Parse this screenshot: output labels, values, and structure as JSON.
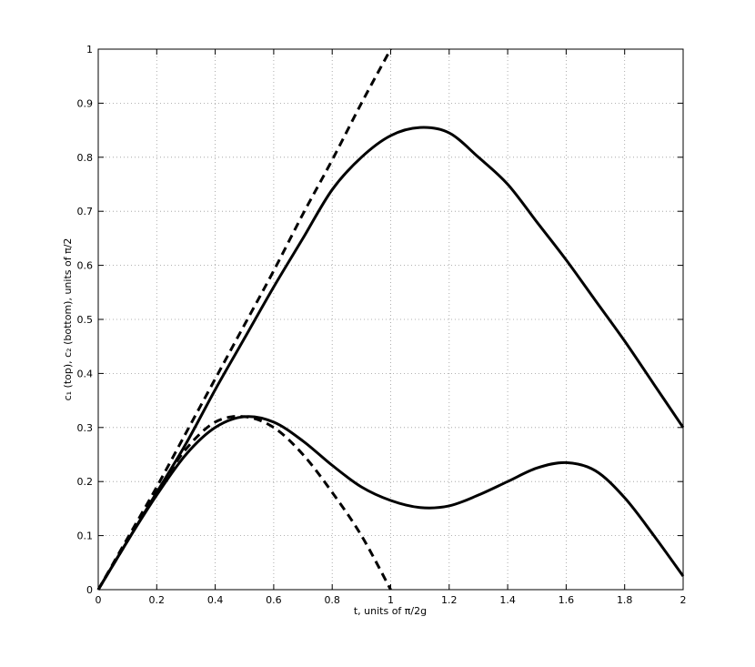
{
  "chart_data": {
    "type": "line",
    "xlabel": "t, units of π/2g",
    "ylabel": "c₁ (top), c₂ (bottom), units of π/2",
    "x": [
      0,
      0.1,
      0.2,
      0.3,
      0.4,
      0.5,
      0.6,
      0.7,
      0.8,
      0.9,
      1.0,
      1.1,
      1.2,
      1.3,
      1.4,
      1.5,
      1.6,
      1.7,
      1.8,
      1.9,
      2.0
    ],
    "series": [
      {
        "color": "#000000",
        "dash": false,
        "values": [
          0,
          0.09,
          0.18,
          0.27,
          0.37,
          0.465,
          0.56,
          0.65,
          0.74,
          0.8,
          0.84,
          0.855,
          0.845,
          0.8,
          0.75,
          0.68,
          0.61,
          0.535,
          0.46,
          0.38,
          0.3
        ]
      },
      {
        "color": "#000000",
        "dash": true,
        "values": [
          0,
          0.095,
          0.19,
          0.29,
          0.39,
          0.49,
          0.59,
          0.695,
          0.795,
          0.9,
          1.0,
          null,
          null,
          null,
          null,
          null,
          null,
          null,
          null,
          null,
          null
        ]
      },
      {
        "color": "#000000",
        "dash": false,
        "values": [
          0,
          0.09,
          0.175,
          0.25,
          0.3,
          0.32,
          0.31,
          0.275,
          0.23,
          0.19,
          0.165,
          0.152,
          0.155,
          0.175,
          0.2,
          0.225,
          0.235,
          0.22,
          0.17,
          0.1,
          0.025
        ]
      },
      {
        "color": "#000000",
        "dash": true,
        "values": [
          0,
          0.09,
          0.18,
          0.26,
          0.31,
          0.32,
          0.3,
          0.25,
          0.18,
          0.1,
          0.0,
          null,
          null,
          null,
          null,
          null,
          null,
          null,
          null,
          null,
          null
        ]
      }
    ],
    "xlim": [
      0,
      2
    ],
    "ylim": [
      0,
      1
    ],
    "xticks": [
      0,
      0.2,
      0.4,
      0.6,
      0.8,
      1,
      1.2,
      1.4,
      1.6,
      1.8,
      2
    ],
    "yticks": [
      0,
      0.1,
      0.2,
      0.3,
      0.4,
      0.5,
      0.6,
      0.7,
      0.8,
      0.9,
      1
    ],
    "grid": true
  }
}
